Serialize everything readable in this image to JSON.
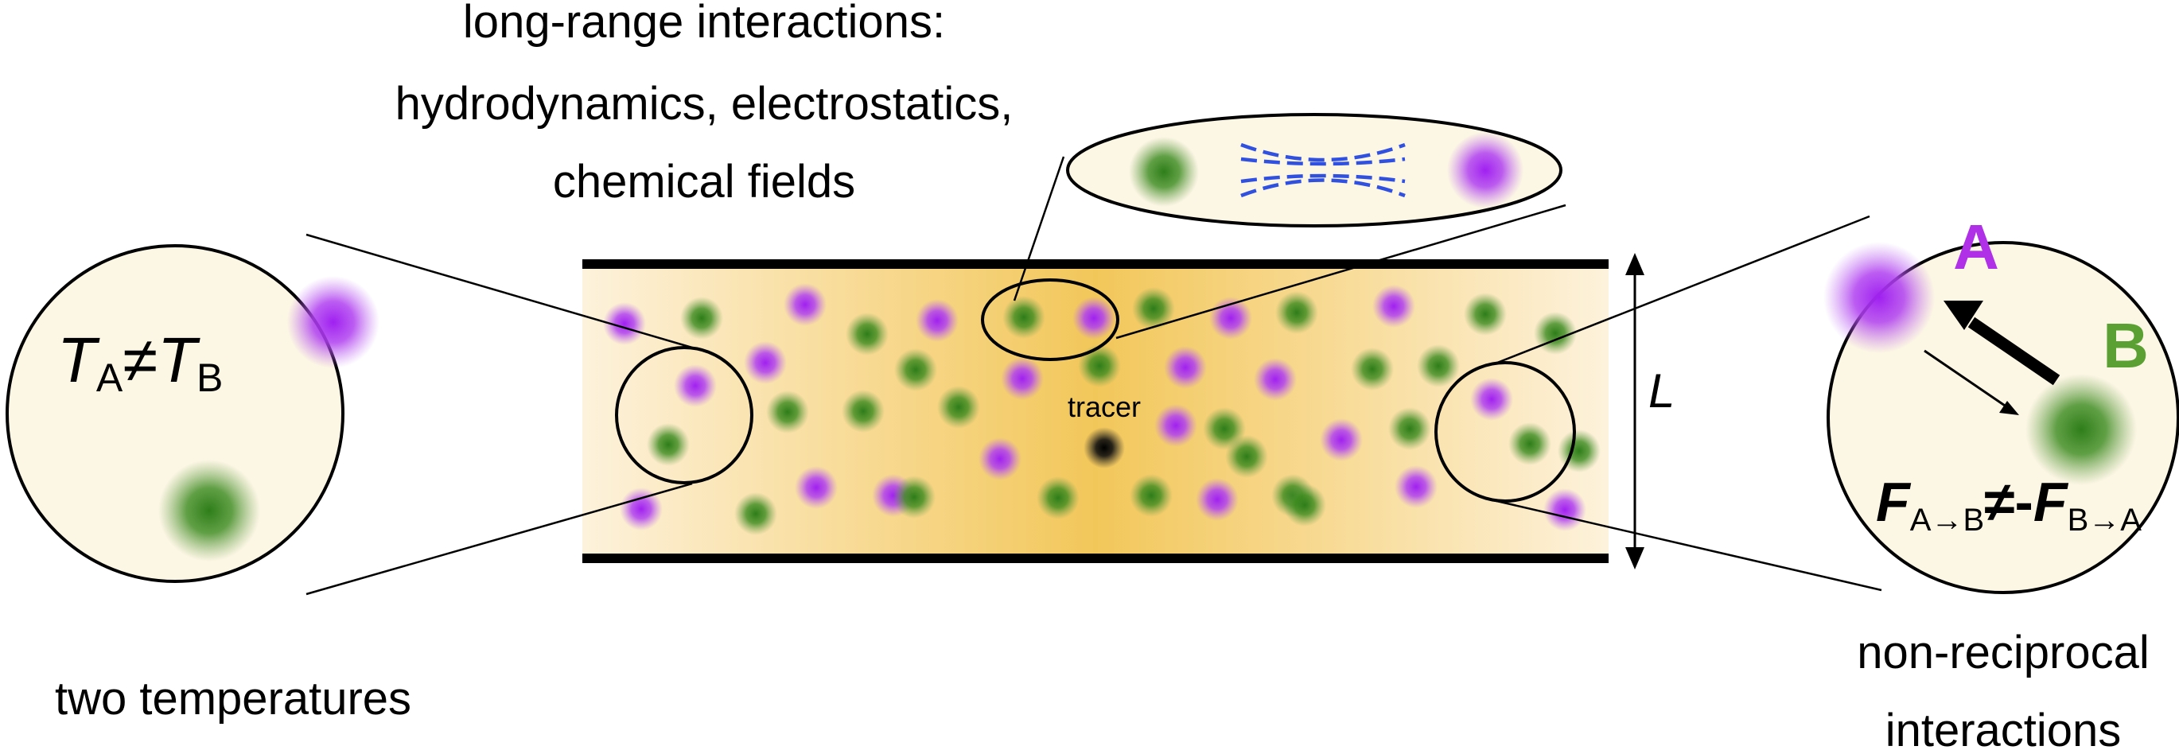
{
  "labels": {
    "long_range_line1": "long-range interactions:",
    "long_range_line2": "hydrodynamics, electrostatics,",
    "long_range_line3": "chemical fields",
    "two_temperatures": "two temperatures",
    "non_reciprocal_line1": "non-reciprocal",
    "non_reciprocal_line2": "interactions",
    "tracer": "tracer",
    "channel_width": "L",
    "species_a": "A",
    "species_b": "B",
    "temp_T1": "T",
    "temp_sub1": "A",
    "temp_neq": "≠",
    "temp_T2": "T",
    "temp_sub2": "B",
    "force_F1": "F",
    "force_sub1": "A→B",
    "force_neq": "≠-",
    "force_F2": "F",
    "force_sub2": "B→A"
  },
  "colors": {
    "species_a": "#a020f0",
    "species_b": "#3a8a1e",
    "label_a": "#b030e8",
    "label_b": "#5aa032",
    "field_lines": "#3050e0",
    "channel_center": "#f2c75a",
    "channel_edge": "#fdf2dc",
    "inset_fill": "#fcf6e4"
  },
  "icons": {
    "channel_width_arrow": "double-headed-vertical-arrow",
    "force_arrows": "antiparallel-arrows",
    "field_lines": "dashed-field-lines"
  }
}
